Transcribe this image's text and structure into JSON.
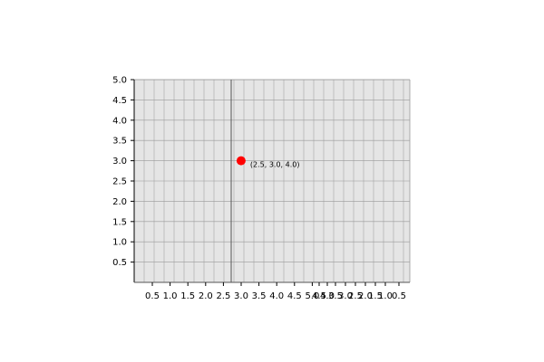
{
  "chart_data": {
    "type": "scatter",
    "title": "",
    "xlabel": "",
    "ylabel": "",
    "grid": true,
    "background_color": "#e5e5e5",
    "grid_color": "#999999",
    "point_color": "#ff0000",
    "y_tick_labels": [
      "0.5",
      "1.0",
      "1.5",
      "2.0",
      "2.5",
      "3.0",
      "3.5",
      "4.0",
      "4.5",
      "5.0"
    ],
    "x_tick_labels": [
      "0.5",
      "1.0",
      "1.5",
      "2.0",
      "2.5",
      "3.0",
      "3.5",
      "4.0",
      "4.5",
      "5.0",
      "4.5",
      "4.0",
      "3.5",
      "3.0",
      "2.5",
      "2.0",
      "1.5",
      "1.0",
      "0.5"
    ],
    "ylim": [
      0,
      5
    ],
    "points": [
      {
        "x": 2.5,
        "y": 3.0,
        "label": "(2.5, 3.0, 4.0)"
      }
    ]
  }
}
